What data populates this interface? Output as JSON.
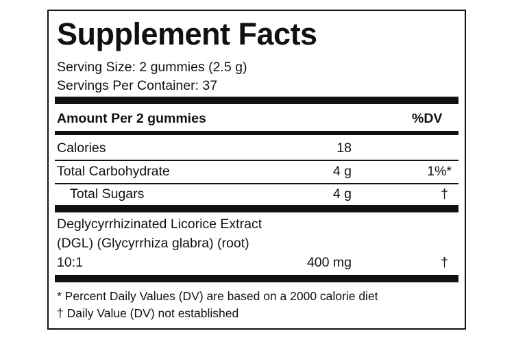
{
  "title": "Supplement Facts",
  "serving_size": "Serving Size: 2 gummies (2.5 g)",
  "servings_per_container": "Servings Per Container: 37",
  "header": {
    "amount_label": "Amount Per 2 gummies",
    "dv_label": "%DV"
  },
  "rows": {
    "calories": {
      "name": "Calories",
      "amount": "18",
      "dv": ""
    },
    "total_carbohydrate": {
      "name": "Total Carbohydrate",
      "amount": "4 g",
      "dv": "1%*"
    },
    "total_sugars": {
      "name": "Total Sugars",
      "amount": "4 g",
      "dv": "†"
    }
  },
  "ingredient": {
    "line1": "Deglycyrrhizinated Licorice Extract",
    "line2": "(DGL) (Glycyrrhiza glabra) (root)",
    "line3": "10:1",
    "amount": "400 mg",
    "dv": "†"
  },
  "footnotes": {
    "percent": "* Percent Daily Values (DV) are based on a 2000 calorie diet",
    "dagger": "† Daily Value (DV) not established"
  }
}
